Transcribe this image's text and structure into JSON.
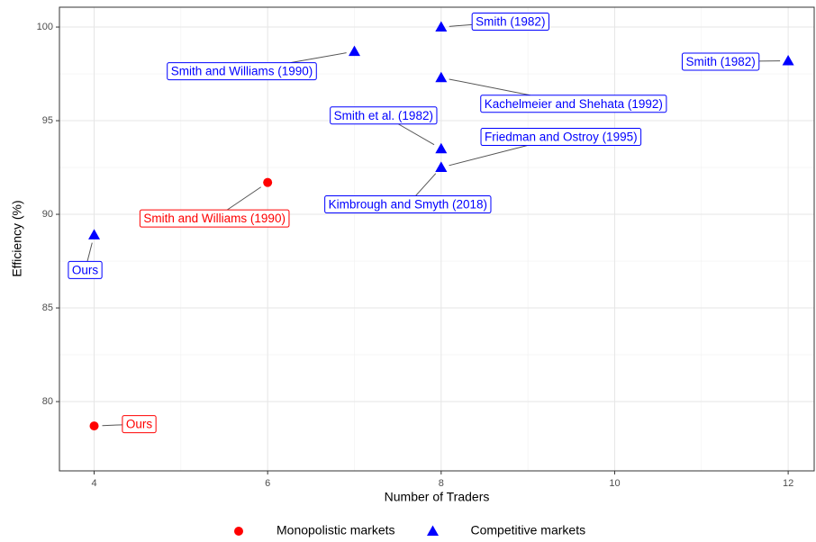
{
  "chart_data": {
    "type": "scatter",
    "xlabel": "Number of Traders",
    "ylabel": "Efficiency (%)",
    "xlim": [
      3.6,
      12.3
    ],
    "ylim": [
      76.3,
      101.06
    ],
    "xticks": [
      4,
      6,
      8,
      10,
      12
    ],
    "yticks": [
      80,
      85,
      90,
      95,
      100
    ],
    "grid": true,
    "legend": "bottom",
    "series": [
      {
        "name": "Monopolistic markets",
        "color": "#ff0000",
        "marker": "circle",
        "x": [
          4,
          6
        ],
        "values": [
          78.7,
          91.7
        ],
        "labels": [
          "Ours",
          "Smith and Williams (1990)"
        ]
      },
      {
        "name": "Competitive markets",
        "color": "#0000ff",
        "marker": "triangle",
        "x": [
          4,
          7,
          8,
          8,
          8,
          8,
          8,
          12
        ],
        "values": [
          88.9,
          98.7,
          100,
          97.3,
          93.5,
          92.5,
          92.5,
          98.2
        ],
        "labels": [
          "Ours",
          "Smith and Williams (1990)",
          "Smith (1982)",
          "Kachelmeier and Shehata (1992)",
          "Smith et al. (1982)",
          "Friedman and Ostroy (1995)",
          "Kimbrough and Smyth (2018)",
          "Smith (1982)"
        ]
      }
    ]
  }
}
